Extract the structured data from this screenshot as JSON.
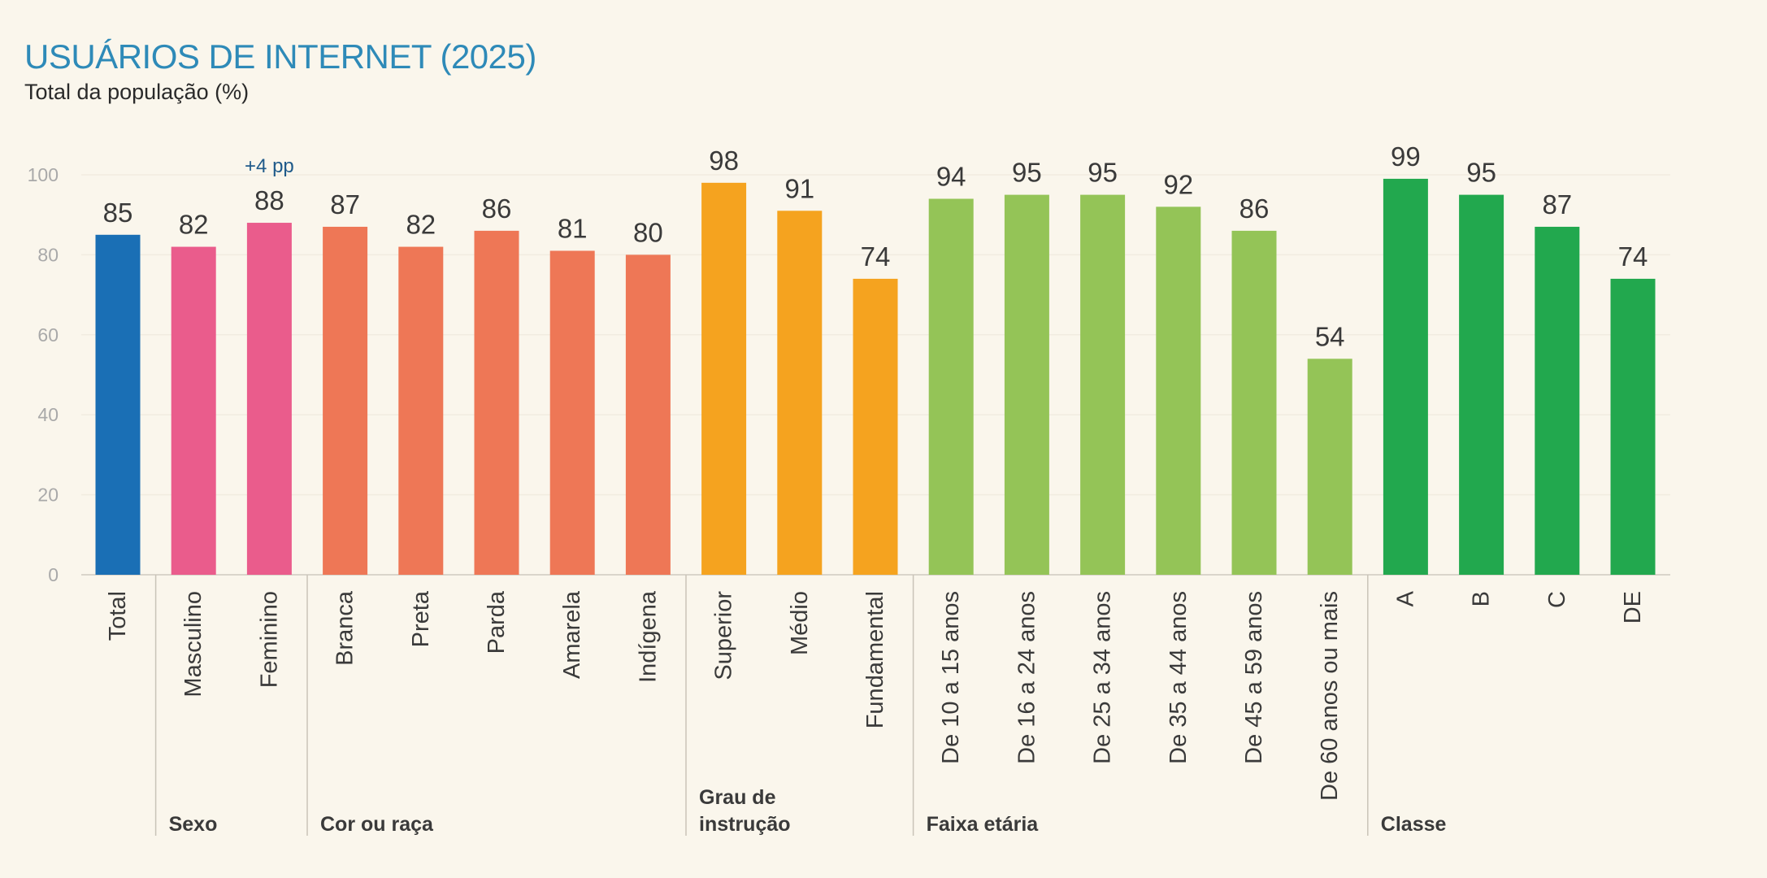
{
  "header": {
    "title": "USUÁRIOS DE INTERNET (2025)",
    "subtitle": "Total da população (%)"
  },
  "chart_data": {
    "type": "bar",
    "title": "USUÁRIOS DE INTERNET (2025)",
    "subtitle": "Total da população (%)",
    "xlabel": "",
    "ylabel": "",
    "ylim": [
      0,
      100
    ],
    "yticks": [
      0,
      20,
      40,
      60,
      80,
      100
    ],
    "grid": true,
    "categories": [
      "Total",
      "Masculino",
      "Feminino",
      "Branca",
      "Preta",
      "Parda",
      "Amarela",
      "Indígena",
      "Superior",
      "Médio",
      "Fundamental",
      "De 10 a 15 anos",
      "De 16 a 24 anos",
      "De 25 a 34 anos",
      "De 35 a 44 anos",
      "De 45 a 59 anos",
      "De 60 anos ou mais",
      "A",
      "B",
      "C",
      "DE"
    ],
    "values": [
      85,
      82,
      88,
      87,
      82,
      86,
      81,
      80,
      98,
      91,
      74,
      94,
      95,
      95,
      92,
      86,
      54,
      99,
      95,
      87,
      74
    ],
    "bar_colors": [
      "#1a6fb5",
      "#ea5c8c",
      "#ea5c8c",
      "#ee7756",
      "#ee7756",
      "#ee7756",
      "#ee7756",
      "#ee7756",
      "#f5a31f",
      "#f5a31f",
      "#f5a31f",
      "#94c457",
      "#94c457",
      "#94c457",
      "#94c457",
      "#94c457",
      "#94c457",
      "#22a84e",
      "#22a84e",
      "#22a84e",
      "#22a84e"
    ],
    "groups": [
      {
        "label": "",
        "start": 0,
        "end": 0
      },
      {
        "label": "Sexo",
        "start": 1,
        "end": 2
      },
      {
        "label": "Cor ou raça",
        "start": 3,
        "end": 7
      },
      {
        "label": "Grau de instrução",
        "start": 8,
        "end": 10
      },
      {
        "label": "Faixa etária",
        "start": 11,
        "end": 16
      },
      {
        "label": "Classe",
        "start": 17,
        "end": 20
      }
    ],
    "annotations": [
      {
        "category": "Feminino",
        "text": "+4 pp"
      }
    ]
  }
}
